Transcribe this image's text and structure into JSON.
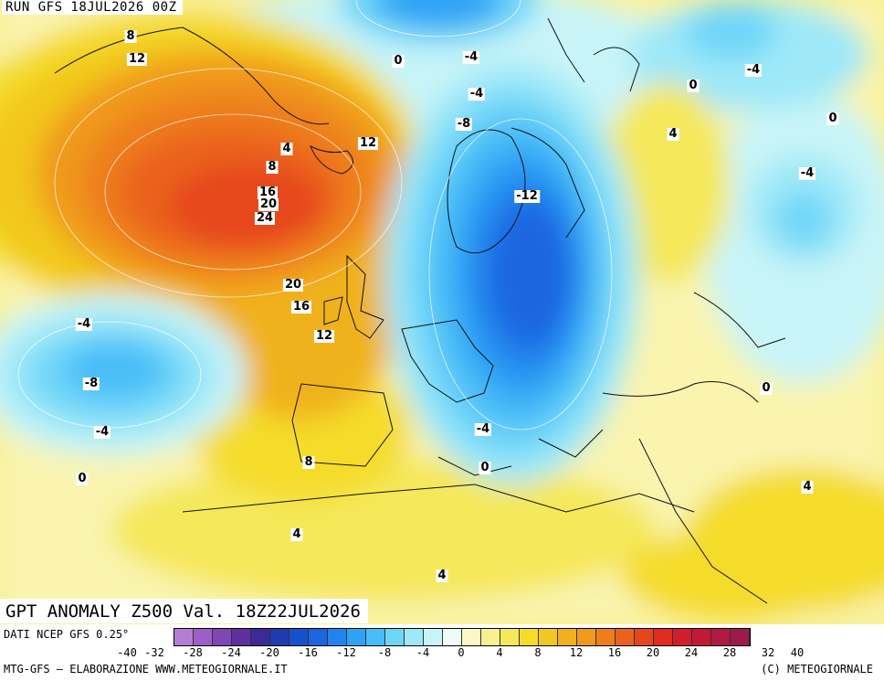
{
  "header": {
    "run_label": "RUN GFS 18JUL2026 00Z"
  },
  "title": {
    "text": "GPT ANOMALY Z500 Val. 18Z22JUL2026"
  },
  "footer": {
    "source": "DATI NCEP GFS 0.25°",
    "credit": "MTG-GFS — ELABORAZIONE WWW.METEOGIORNALE.IT",
    "copyright": "(C) METEOGIORNALE"
  },
  "legend": {
    "ticks": [
      "-40",
      "-32",
      "-28",
      "-24",
      "-20",
      "-16",
      "-12",
      "-8",
      "-4",
      "0",
      "4",
      "8",
      "12",
      "16",
      "20",
      "24",
      "28",
      "32",
      "40"
    ],
    "colors": [
      "#b57ed6",
      "#9b5fc7",
      "#7f46b4",
      "#5f2fa0",
      "#3a2a9a",
      "#1f3bb0",
      "#1750cc",
      "#1a66e0",
      "#2184ee",
      "#2ea3f5",
      "#49bdf8",
      "#6fd6f8",
      "#9ee8f8",
      "#c8f4f8",
      "#eefcf6",
      "#fbf8c8",
      "#f8f090",
      "#f5e85a",
      "#f5dc2a",
      "#f2c81c",
      "#f0b21c",
      "#f0991c",
      "#ee7e1c",
      "#ea621c",
      "#e6461c",
      "#e02c1e",
      "#d21e2a",
      "#c21a36",
      "#b01a42",
      "#9e1a4a"
    ]
  },
  "map": {
    "contour_labels": [
      {
        "text": "8"
      },
      {
        "text": "12"
      },
      {
        "text": "4"
      },
      {
        "text": "8"
      },
      {
        "text": "16"
      },
      {
        "text": "20"
      },
      {
        "text": "24"
      },
      {
        "text": "12"
      },
      {
        "text": "20"
      },
      {
        "text": "16"
      },
      {
        "text": "12"
      },
      {
        "text": "-4"
      },
      {
        "text": "-8"
      },
      {
        "text": "-4"
      },
      {
        "text": "0"
      },
      {
        "text": "8"
      },
      {
        "text": "4"
      },
      {
        "text": "4"
      },
      {
        "text": "0"
      },
      {
        "text": "-4"
      },
      {
        "text": "-4"
      },
      {
        "text": "-8"
      },
      {
        "text": "-12"
      },
      {
        "text": "-4"
      },
      {
        "text": "0"
      },
      {
        "text": "0"
      },
      {
        "text": "-4"
      },
      {
        "text": "0"
      },
      {
        "text": "4"
      },
      {
        "text": "-4"
      },
      {
        "text": "0"
      },
      {
        "text": "0"
      },
      {
        "text": "4"
      }
    ]
  }
}
